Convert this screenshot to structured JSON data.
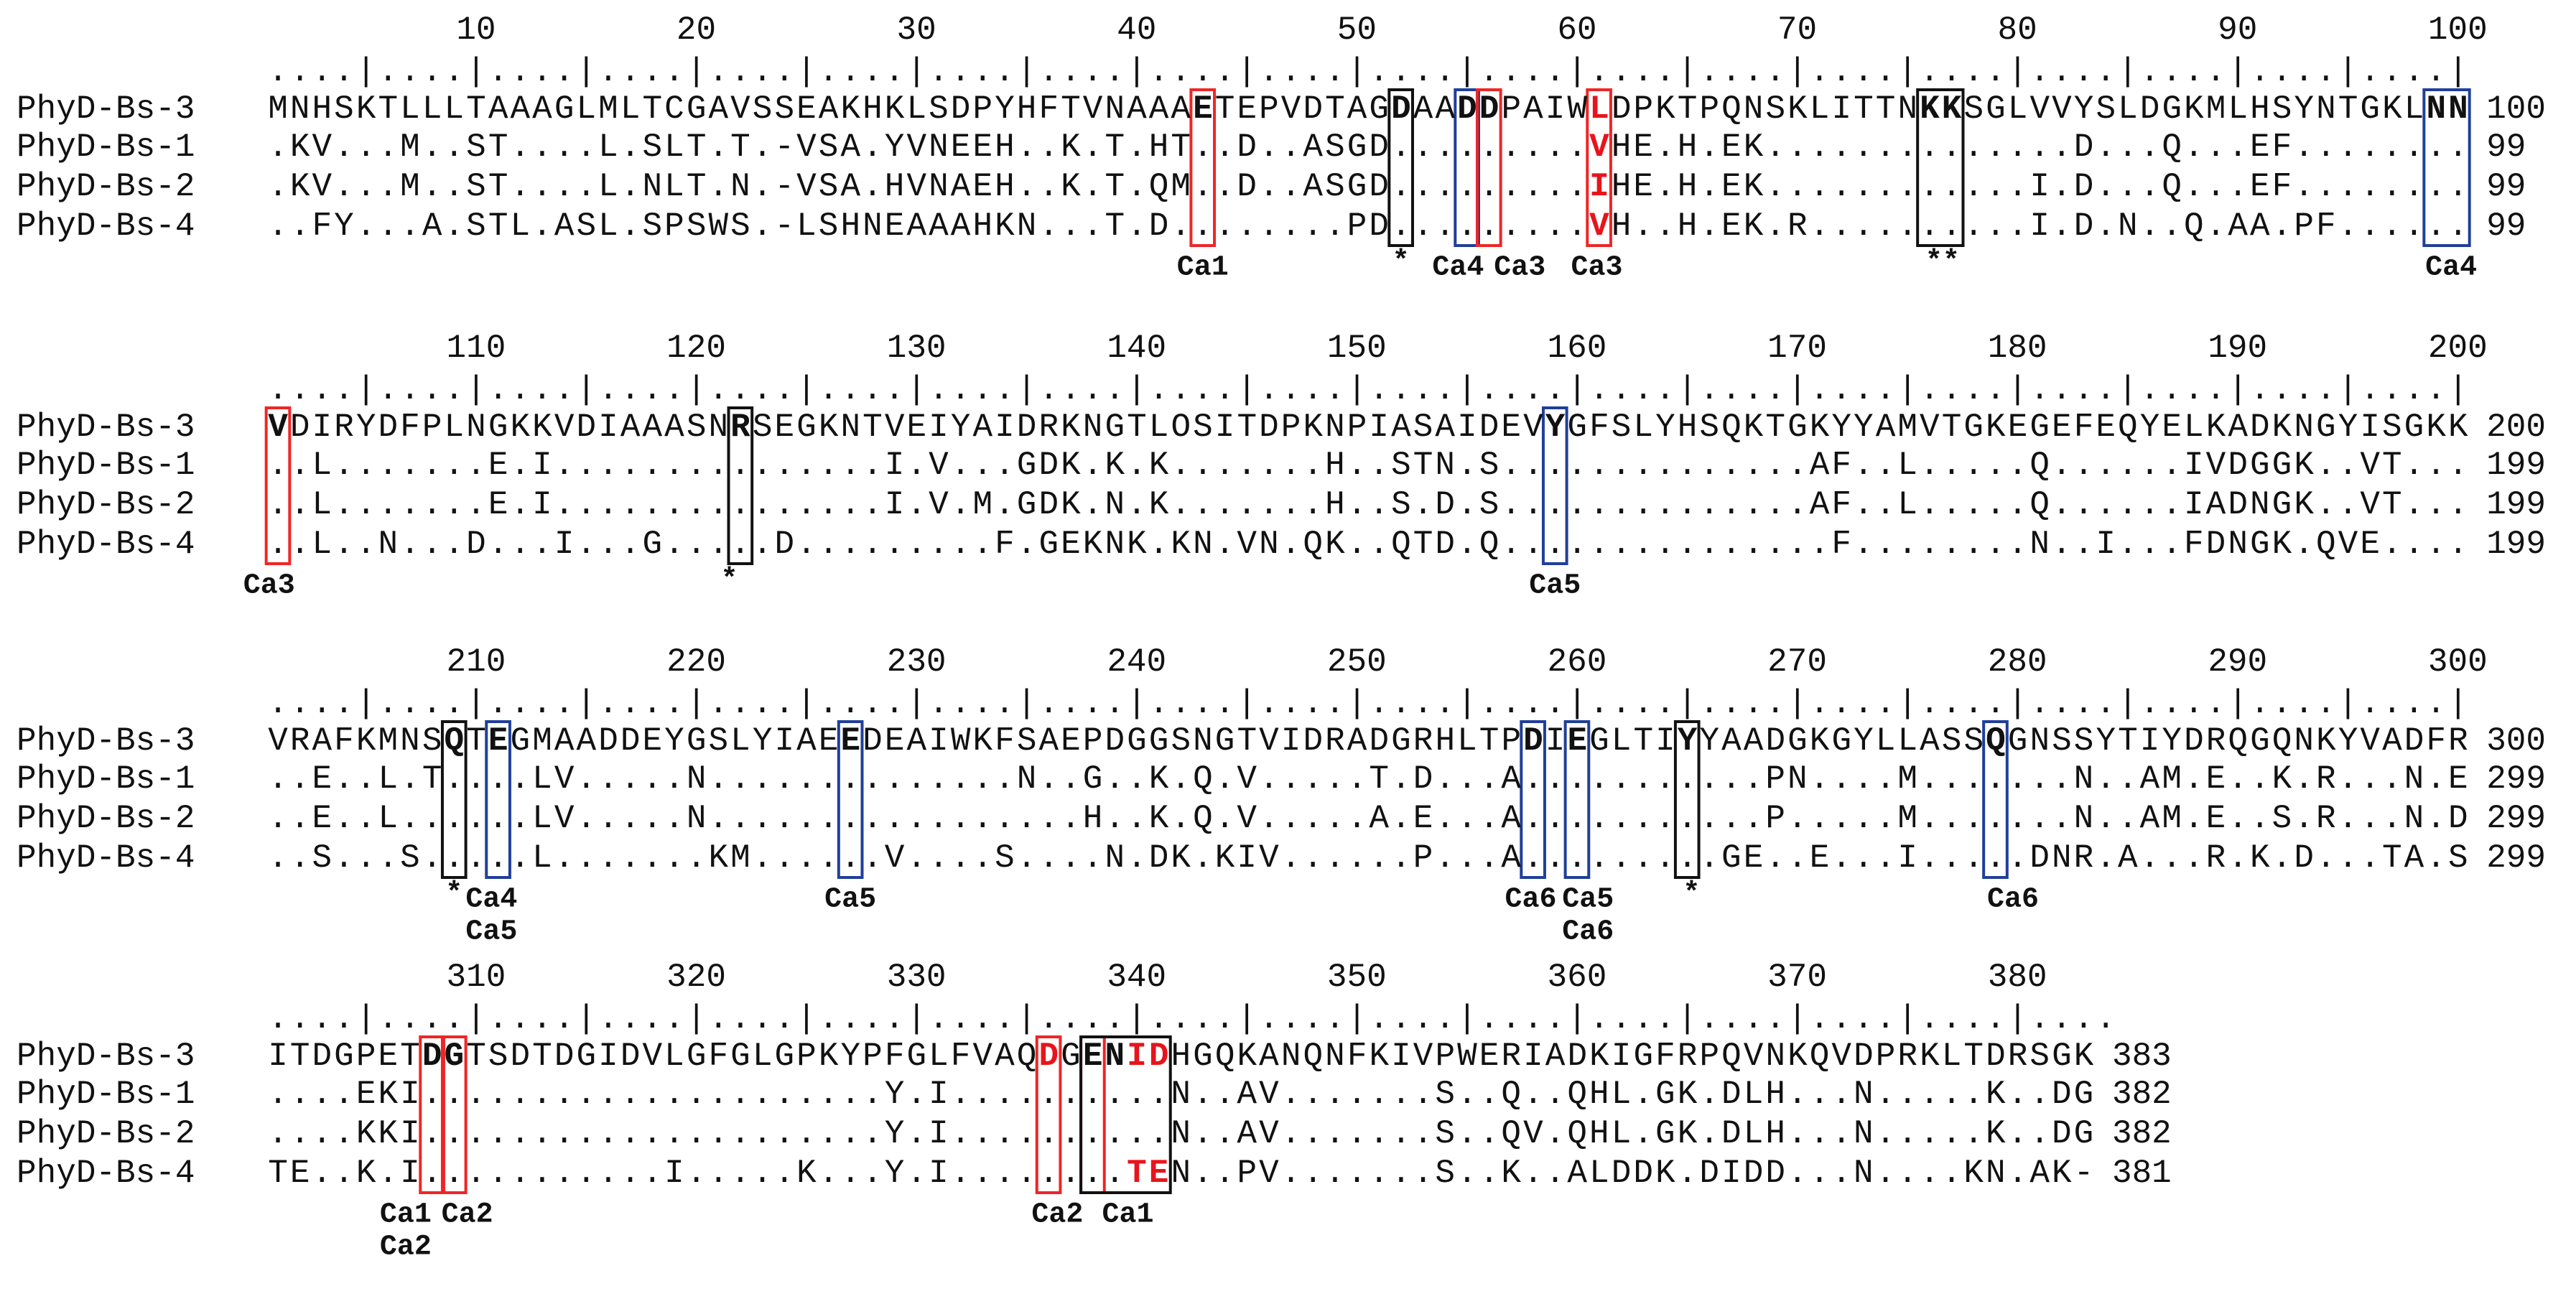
{
  "blocks": [
    {
      "ticks": [
        10,
        20,
        30,
        40,
        50,
        60,
        70,
        80,
        90,
        100
      ],
      "ruler": "....|....|....|....|....|....|....|....|....|....|....|....|....|....|....|....|....|....|....|....|",
      "rows": [
        {
          "name": "PhyD-Bs-3",
          "seq": "MNHSKTLLLTAAAGLMLTCGAVSSEAKHKLSDPYHFTVNAAAETEPVDTAGDAADDPAIWLDPKTPQNSKLITTNKKSGLVVYSLDGKMLHSYNTGKLNN",
          "end": 100
        },
        {
          "name": "PhyD-Bs-1",
          "seq": ".KV...M..ST....L.SLT.T.-VSA.YVNEEH..K.T.HT..D..ASGD.........VHE.H.EK..............D...Q...EF........",
          "end": 99
        },
        {
          "name": "PhyD-Bs-2",
          "seq": ".KV...M..ST....L.NLT.N.-VSA.HVNAEH..K.T.QM..D..ASGD.........IHE.H.EK............I.D...Q...EF........",
          "end": 99
        },
        {
          "name": "PhyD-Bs-4",
          "seq": "..FY...A.STL.ASL.SPSWS.-LSHNEAAAHKN...T.D........PD.........VH..H.EK.R..........I.D.N..Q.AA.PF......",
          "end": 99
        }
      ],
      "annotations": [
        {
          "label": "Ca1",
          "color": "#e8141b"
        },
        {
          "label": "*",
          "color": "#111111"
        },
        {
          "label": "Ca4",
          "color": "#1d3d8f"
        },
        {
          "label": "Ca3",
          "color": "#e8141b"
        },
        {
          "label": "Ca3",
          "color": "#e8141b"
        },
        {
          "label": "**",
          "color": "#111111"
        },
        {
          "label": "Ca4",
          "color": "#1d3d8f"
        }
      ]
    },
    {
      "ticks": [
        110,
        120,
        130,
        140,
        150,
        160,
        170,
        180,
        190,
        200
      ],
      "ruler": "....|....|....|....|....|....|....|....|....|....|....|....|....|....|....|....|....|....|....|....|",
      "rows": [
        {
          "name": "PhyD-Bs-3",
          "seq": "VDIRYDFPLNGKKVDIAAASNRSEGKNTVEIYAIDRKNGTLOSITDPKNPIASAIDEVYGFSLYHSQKTGKYYAMVTGKEGEFEQYELKADKNGYISGKK",
          "end": 200
        },
        {
          "name": "PhyD-Bs-1",
          "seq": "..L.......E.I...............I.V...GDK.K.K.......H..STN.S..............AF..L.....Q......IVDGGK..VT...",
          "end": 199
        },
        {
          "name": "PhyD-Bs-2",
          "seq": "..L.......E.I...............I.V.M.GDK.N.K.......H..S.D.S..............AF..L.....Q......IADNGK..VT...",
          "end": 199
        },
        {
          "name": "PhyD-Bs-4",
          "seq": "..L..N...D...I...G.....D.........F.GEKNK.KN.VN.QK..QTD.Q...............F........N..I...FDNGK.QVE....",
          "end": 199
        }
      ],
      "annotations": [
        {
          "label": "Ca3",
          "color": "#e8141b"
        },
        {
          "label": "*",
          "color": "#111111"
        },
        {
          "label": "Ca5",
          "color": "#1d3d8f"
        }
      ]
    },
    {
      "ticks": [
        210,
        220,
        230,
        240,
        250,
        260,
        270,
        280,
        290,
        300
      ],
      "ruler": "....|....|....|....|....|....|....|....|....|....|....|....|....|....|....|....|....|....|....|....|",
      "rows": [
        {
          "name": "PhyD-Bs-3",
          "seq": "VRAFKMNSQTEGMAADDEYGSLYIAEEDEAIWKFSAEPDGGSNGTVIDRADGRHLTPDIEGLTIYYAADGKGYLLASSQGNSSYTIYDRQGQNKYVADFR",
          "end": 300
        },
        {
          "name": "PhyD-Bs-1",
          "seq": "..E..L.T....LV.....N..............N..G..K.Q.V.....T.D...A...........PN....M.......N..AM.E..K.R...N.E",
          "end": 299
        },
        {
          "name": "PhyD-Bs-2",
          "seq": "..E..L......LV.....N.................H..K.Q.V.....A.E...A...........P.....M.......N..AM.E..S.R...N.D",
          "end": 299
        },
        {
          "name": "PhyD-Bs-4",
          "seq": "..S...S.....L.......KM......V....S....N.DK.KIV......P...A.........GE..E...I.....DNR.A...R.K.D...TA.S",
          "end": 299
        }
      ],
      "annotations": [
        {
          "label": "*",
          "color": "#111111"
        },
        {
          "label": "Ca4",
          "color": "#1d3d8f"
        },
        {
          "label": "Ca5",
          "color": "#1d3d8f"
        },
        {
          "label": "Ca5",
          "color": "#1d3d8f"
        },
        {
          "label": "Ca6",
          "color": "#1d3d8f"
        },
        {
          "label": "Ca5",
          "color": "#1d3d8f"
        },
        {
          "label": "Ca6",
          "color": "#1d3d8f"
        },
        {
          "label": "*",
          "color": "#111111"
        },
        {
          "label": "Ca6",
          "color": "#1d3d8f"
        }
      ]
    },
    {
      "ticks": [
        310,
        320,
        330,
        340,
        350,
        360,
        370,
        380
      ],
      "ruler": "....|....|....|....|....|....|....|....|....|....|....|....|....|....|....|....|....",
      "rows": [
        {
          "name": "PhyD-Bs-3",
          "seq": "ITDGPETDGTSDTDGIDVLGFGLGPKYPFGLFVAQDGENIDHGQKANQNFKIVPWERIADKIGFRPQVNKQVDPRKLTDRSGK",
          "end": 383
        },
        {
          "name": "PhyD-Bs-1",
          "seq": "....EKI.....................Y.I..........N..AV.......S..Q..QHL.GK.DLH...N.....K..DG",
          "end": 382
        },
        {
          "name": "PhyD-Bs-2",
          "seq": "....KKI.....................Y.I..........N..AV.......S..QV.QHL.GK.DLH...N.....K..DG",
          "end": 382
        },
        {
          "name": "PhyD-Bs-4",
          "seq": "TE..K.I...........I.....K...Y.I........TEN..PV.......S..K..ALDDK.DIDD...N....KN.AK-",
          "end": 381
        }
      ],
      "annotations": [
        {
          "label": "Ca1",
          "color": "#e8141b"
        },
        {
          "label": "Ca2",
          "color": "#e8141b"
        },
        {
          "label": "Ca2",
          "color": "#e8141b"
        },
        {
          "label": "Ca2",
          "color": "#e8141b"
        },
        {
          "label": "Ca1",
          "color": "#e8141b"
        }
      ]
    }
  ]
}
